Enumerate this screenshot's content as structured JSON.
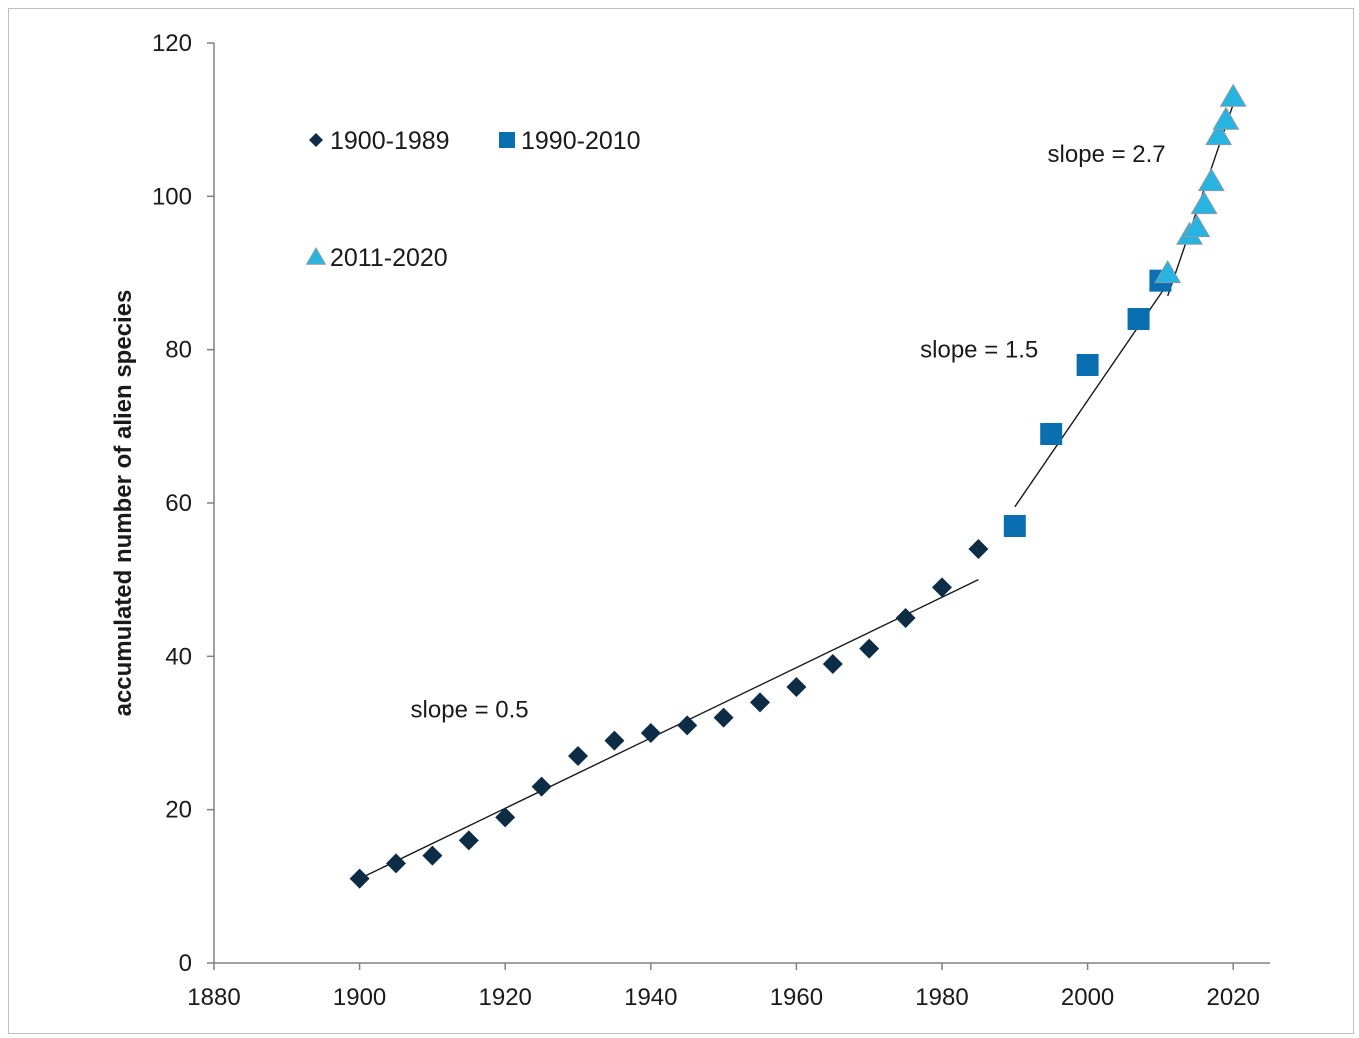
{
  "chart_data": {
    "type": "scatter",
    "title": "",
    "xlabel": "",
    "ylabel": "accumulated number of alien species",
    "xlim": [
      1880,
      2025
    ],
    "ylim": [
      0,
      120
    ],
    "xticks": [
      1880,
      1900,
      1920,
      1940,
      1960,
      1980,
      2000,
      2020
    ],
    "yticks": [
      0,
      20,
      40,
      60,
      80,
      100,
      120
    ],
    "grid": false,
    "legend_position": "top-left",
    "series": [
      {
        "name": "1900-1989",
        "marker": "diamond",
        "color": "#0d2c45",
        "x": [
          1900,
          1905,
          1910,
          1915,
          1920,
          1925,
          1930,
          1935,
          1940,
          1945,
          1950,
          1955,
          1960,
          1965,
          1970,
          1975,
          1980,
          1985
        ],
        "y": [
          11,
          13,
          14,
          16,
          19,
          23,
          27,
          29,
          30,
          31,
          32,
          34,
          36,
          39,
          41,
          45,
          49,
          54
        ]
      },
      {
        "name": "1990-2010",
        "marker": "square",
        "color": "#0a6fb0",
        "x": [
          1990,
          1995,
          2000,
          2007,
          2010
        ],
        "y": [
          57,
          69,
          78,
          84,
          89
        ]
      },
      {
        "name": "2011-2020",
        "marker": "triangle",
        "color": "#28b4e0",
        "x": [
          2011,
          2014,
          2015,
          2016,
          2017,
          2018,
          2019,
          2020
        ],
        "y": [
          90,
          95,
          96,
          99,
          102,
          108,
          110,
          113
        ]
      }
    ],
    "trendlines": [
      {
        "x": [
          1900,
          1985
        ],
        "y": [
          11,
          50
        ]
      },
      {
        "x": [
          1990,
          2012
        ],
        "y": [
          59.5,
          90
        ]
      },
      {
        "x": [
          2011,
          2020
        ],
        "y": [
          87,
          112
        ]
      }
    ],
    "annotations": [
      {
        "text": "slope = 0.5",
        "x": 1907,
        "y": 32
      },
      {
        "text": "slope = 1.5",
        "x": 1977,
        "y": 79
      },
      {
        "text": "slope = 2.7",
        "x": 1994.5,
        "y": 104.5
      }
    ]
  }
}
